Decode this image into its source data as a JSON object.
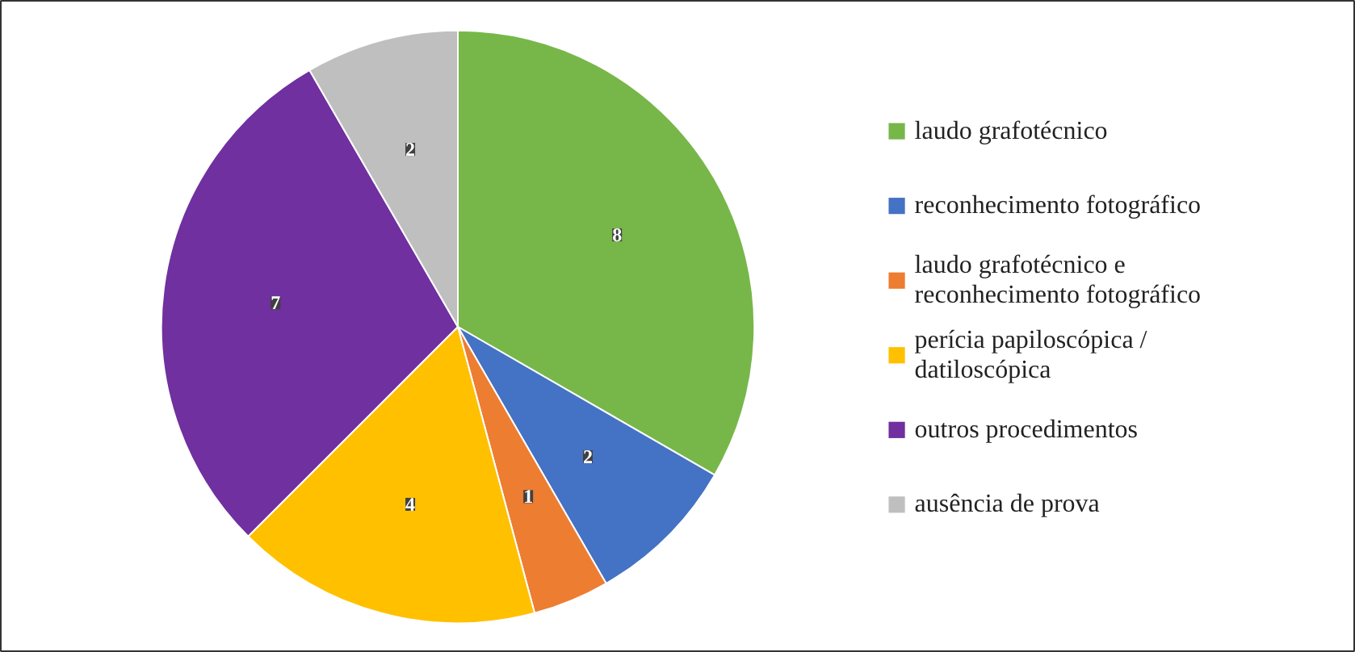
{
  "chart_data": {
    "type": "pie",
    "categories": [
      "laudo grafotécnico",
      "reconhecimento fotográfico",
      "laudo grafotécnico e reconhecimento fotográfico",
      "perícia papiloscópica / datiloscópica",
      "outros procedimentos",
      "ausência de prova"
    ],
    "values": [
      8,
      2,
      1,
      4,
      7,
      2
    ],
    "colors": [
      "#77b74a",
      "#4472c4",
      "#ed7d31",
      "#ffc000",
      "#7030a0",
      "#bfbfbf"
    ],
    "data_labels": true,
    "legend": "right"
  }
}
